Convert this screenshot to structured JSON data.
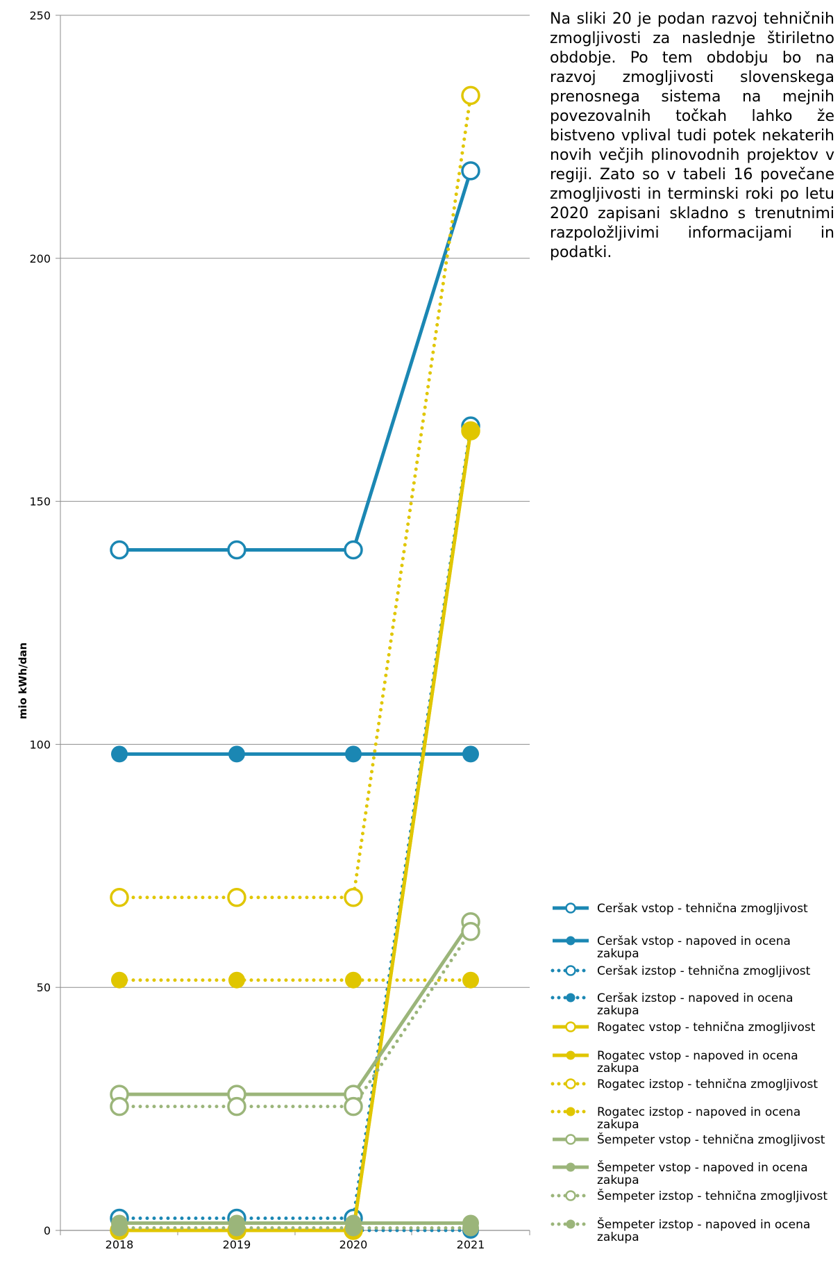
{
  "description_text": "Na sliki 20 je podan razvoj tehničnih zmogljivosti za naslednje štiriletno obdobje. Po tem obdobju bo na razvoj zmogljivosti slovenskega prenosnega sistema na mejnih povezovalnih točkah lahko že bistveno vplival tudi potek nekaterih novih večjih plinovodnih projektov v regiji. Zato so v tabeli 16 povečane zmogljivosti in terminski roki po letu 2020 zapisani skladno s trenutnimi razpoložljivimi informacijami in podatki.",
  "chart_data": {
    "type": "line",
    "title": "",
    "xlabel": "",
    "ylabel": "mio kWh/dan",
    "ylim": [
      0,
      250
    ],
    "yticks": [
      0,
      50,
      100,
      150,
      200,
      250
    ],
    "categories": [
      "2018",
      "2019",
      "2020",
      "2021"
    ],
    "grid": true,
    "legend_position": "right",
    "series": [
      {
        "name": "Ceršak vstop - tehnična zmogljivost",
        "values": [
          140,
          140,
          140,
          218
        ],
        "color": "#1b87b3",
        "line": "solid",
        "marker": "hollow"
      },
      {
        "name": "Ceršak vstop - napoved in ocena zakupa",
        "values": [
          98,
          98,
          98,
          98
        ],
        "color": "#1b87b3",
        "line": "solid",
        "marker": "filled"
      },
      {
        "name": "Ceršak izstop - tehnična zmogljivost",
        "values": [
          2.5,
          2.5,
          2.5,
          165.5
        ],
        "color": "#1b87b3",
        "line": "dotted",
        "marker": "hollow"
      },
      {
        "name": "Ceršak izstop - napoved in ocena zakupa",
        "values": [
          0,
          0,
          0,
          0
        ],
        "color": "#1b87b3",
        "line": "dotted",
        "marker": "filled"
      },
      {
        "name": "Rogatec vstop - tehnična zmogljivost",
        "values": [
          0,
          0,
          0,
          164.5
        ],
        "color": "#e0c600",
        "line": "solid",
        "marker": "hollow"
      },
      {
        "name": "Rogatec vstop - napoved in ocena zakupa",
        "values": [
          0,
          0,
          0,
          164.5
        ],
        "color": "#e0c600",
        "line": "solid",
        "marker": "filled"
      },
      {
        "name": "Rogatec izstop - tehnična zmogljivost",
        "values": [
          68.5,
          68.5,
          68.5,
          233.5
        ],
        "color": "#e0c600",
        "line": "dotted",
        "marker": "hollow"
      },
      {
        "name": "Rogatec izstop - napoved in ocena zakupa",
        "values": [
          51.5,
          51.5,
          51.5,
          51.5
        ],
        "color": "#e0c600",
        "line": "dotted",
        "marker": "filled"
      },
      {
        "name": "Šempeter vstop - tehnična zmogljivost",
        "values": [
          28,
          28,
          28,
          63.5
        ],
        "color": "#9bb57a",
        "line": "solid",
        "marker": "hollow"
      },
      {
        "name": "Šempeter vstop - napoved in ocena zakupa",
        "values": [
          1.5,
          1.5,
          1.5,
          1.5
        ],
        "color": "#9bb57a",
        "line": "solid",
        "marker": "filled"
      },
      {
        "name": "Šempeter izstop - tehnična zmogljivost",
        "values": [
          25.5,
          25.5,
          25.5,
          61.5
        ],
        "color": "#9bb57a",
        "line": "dotted",
        "marker": "hollow"
      },
      {
        "name": "Šempeter izstop - napoved in ocena zakupa",
        "values": [
          0.5,
          0.5,
          0.5,
          0.5
        ],
        "color": "#9bb57a",
        "line": "dotted",
        "marker": "filled"
      }
    ]
  }
}
